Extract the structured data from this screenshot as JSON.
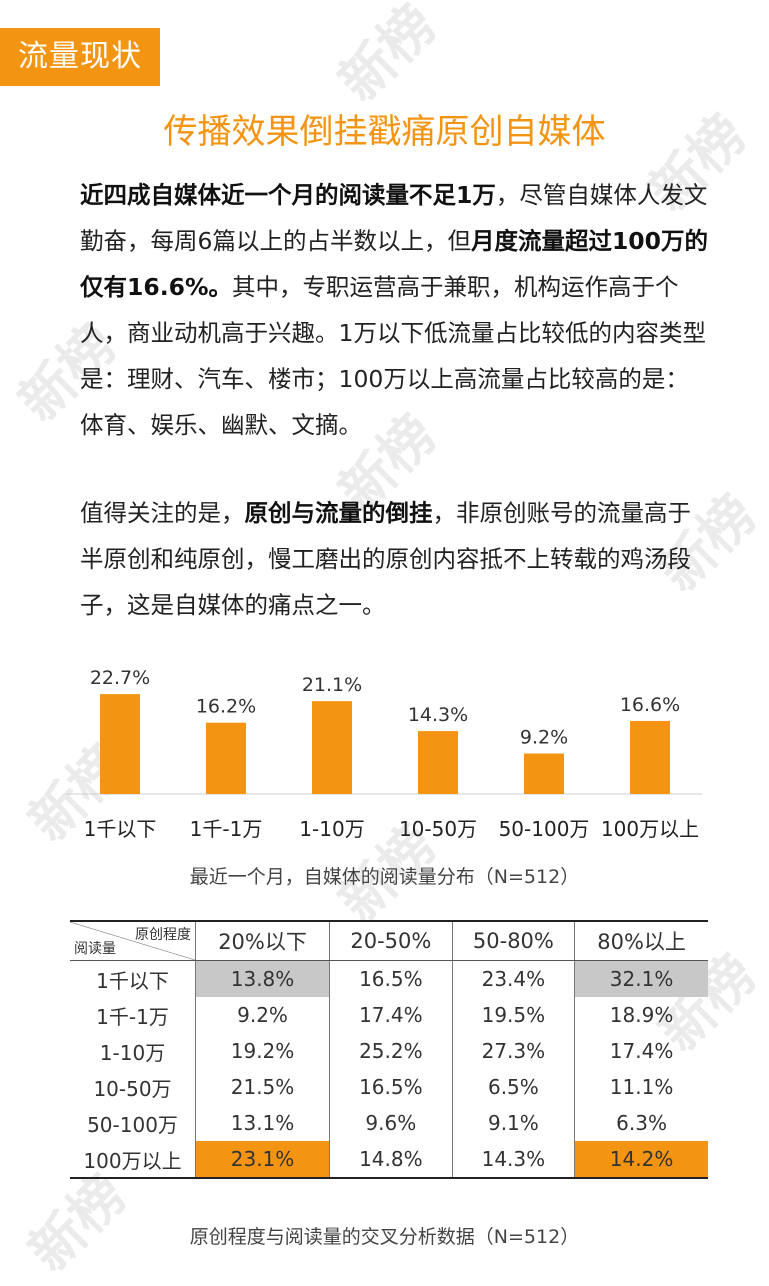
{
  "tag": "流量现状",
  "watermark": "新榜",
  "title": "传播效果倒挂戳痛原创自媒体",
  "paragraph1": [
    {
      "text": "近四成自媒体近一个月的阅读量不足1万",
      "bold": true
    },
    {
      "text": "，尽管自媒体人发文勤奋，每周6篇以上的占半数以上，但",
      "bold": false
    },
    {
      "text": "月度流量超过100万的仅有16.6%。",
      "bold": true
    },
    {
      "text": "其中，专职运营高于兼职，机构运作高于个人，商业动机高于兴趣。1万以下低流量占比较低的内容类型是：理财、汽车、楼市；100万以上高流量占比较高的是：体育、娱乐、幽默、文摘。",
      "bold": false
    }
  ],
  "paragraph2": [
    {
      "text": "值得关注的是，",
      "bold": false
    },
    {
      "text": "原创与流量的倒挂",
      "bold": true
    },
    {
      "text": "，非原创账号的流量高于半原创和纯原创，慢工磨出的原创内容抵不上转载的鸡汤段子，这是自媒体的痛点之一。",
      "bold": false
    }
  ],
  "chart_data": {
    "type": "bar",
    "categories": [
      "1千以下",
      "1千-1万",
      "1-10万",
      "10-50万",
      "50-100万",
      "100万以上"
    ],
    "values": [
      22.7,
      16.2,
      21.1,
      14.3,
      9.2,
      16.6
    ],
    "value_labels": [
      "22.7%",
      "16.2%",
      "21.1%",
      "14.3%",
      "9.2%",
      "16.6%"
    ],
    "unit": "%",
    "bar_color": "#f39412",
    "ylim": [
      0,
      25
    ],
    "grid": false,
    "title": "最近一个月，自媒体的阅读量分布（N=512）"
  },
  "table": {
    "corner_top": "原创程度",
    "corner_bottom": "阅读量",
    "columns": [
      "20%以下",
      "20-50%",
      "50-80%",
      "80%以上"
    ],
    "rows": [
      {
        "label": "1千以下",
        "cells": [
          "13.8%",
          "16.5%",
          "23.4%",
          "32.1%"
        ],
        "highlight": [
          "gray",
          "",
          "",
          "gray"
        ]
      },
      {
        "label": "1千-1万",
        "cells": [
          "9.2%",
          "17.4%",
          "19.5%",
          "18.9%"
        ],
        "highlight": [
          "",
          "",
          "",
          ""
        ]
      },
      {
        "label": "1-10万",
        "cells": [
          "19.2%",
          "25.2%",
          "27.3%",
          "17.4%"
        ],
        "highlight": [
          "",
          "",
          "",
          ""
        ]
      },
      {
        "label": "10-50万",
        "cells": [
          "21.5%",
          "16.5%",
          "6.5%",
          "11.1%"
        ],
        "highlight": [
          "",
          "",
          "",
          ""
        ]
      },
      {
        "label": "50-100万",
        "cells": [
          "13.1%",
          "9.6%",
          "9.1%",
          "6.3%"
        ],
        "highlight": [
          "",
          "",
          "",
          ""
        ]
      },
      {
        "label": "100万以上",
        "cells": [
          "23.1%",
          "14.8%",
          "14.3%",
          "14.2%"
        ],
        "highlight": [
          "orange",
          "",
          "",
          "orange"
        ]
      }
    ],
    "caption": "原创程度与阅读量的交叉分析数据（N=512）"
  },
  "colors": {
    "accent": "#f39412",
    "highlight_gray": "#c8c8c8",
    "watermark": "#e7e7e7"
  }
}
